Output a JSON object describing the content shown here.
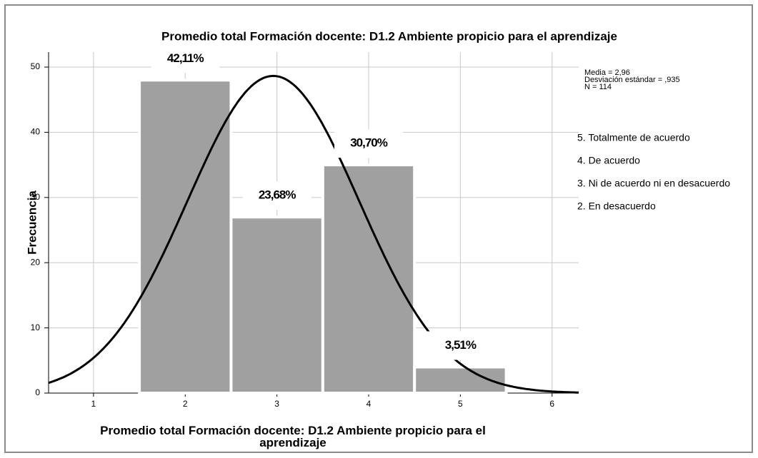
{
  "chart_data": {
    "type": "histogram",
    "title": "Promedio total Formación docente: D1.2 Ambiente propicio para el aprendizaje",
    "xlabel": "Promedio total Formación docente: D1.2 Ambiente propicio para el aprendizaje",
    "ylabel": "Frecuencia",
    "bins": [
      1.5,
      2.5,
      3.5,
      4.5,
      5.5
    ],
    "values": [
      48,
      27,
      35,
      4
    ],
    "percents": [
      42.11,
      23.68,
      30.7,
      3.51
    ],
    "percent_labels": [
      "42,11%",
      "23,68%",
      "30,70%",
      "3,51%"
    ],
    "color": "#a0a0a0",
    "curve_color": "#000000",
    "stats": [
      {
        "value": 2.96,
        "label": "Media = 2,96"
      },
      {
        "value": 0.935,
        "label": "Desviación estándar = ,935"
      },
      {
        "value": 114,
        "label": "N = 114"
      }
    ],
    "annotations": [
      "5. Totalmente de acuerdo",
      "4. De acuerdo",
      "3. Ni de acuerdo ni en desacuerdo",
      "2. En desacuerdo"
    ],
    "xlim": [
      0.51,
      6.29
    ],
    "xticks": [
      1,
      2,
      3,
      4,
      5,
      6
    ],
    "ylim": [
      0,
      52.3
    ],
    "yticks": [
      0,
      10,
      20,
      30,
      40,
      50
    ],
    "grid": true
  }
}
